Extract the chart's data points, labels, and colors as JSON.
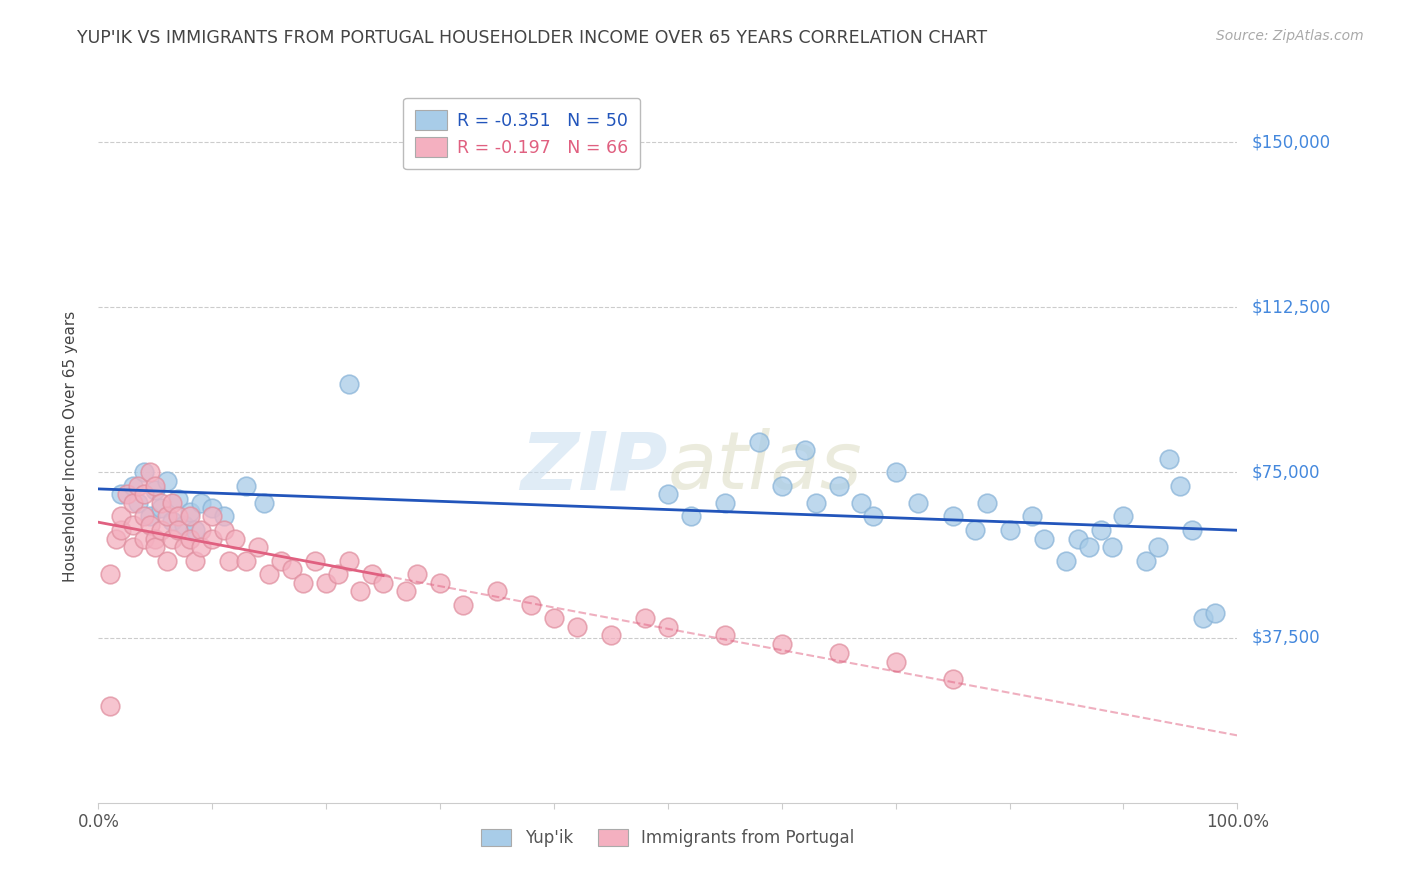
{
  "title": "YUP'IK VS IMMIGRANTS FROM PORTUGAL HOUSEHOLDER INCOME OVER 65 YEARS CORRELATION CHART",
  "source": "Source: ZipAtlas.com",
  "ylabel": "Householder Income Over 65 years",
  "ytick_labels": [
    "$37,500",
    "$75,000",
    "$112,500",
    "$150,000"
  ],
  "ytick_values": [
    37500,
    75000,
    112500,
    150000
  ],
  "ymin": 0,
  "ymax": 162000,
  "xmin": 0,
  "xmax": 1.0,
  "series1_label": "Yup'ik",
  "series1_R": -0.351,
  "series1_N": 50,
  "series1_color": "#a8cce8",
  "series1_edge_color": "#8ab4d8",
  "series1_line_color": "#2255bb",
  "series2_label": "Immigrants from Portugal",
  "series2_R": -0.197,
  "series2_N": 66,
  "series2_color": "#f4b0c0",
  "series2_edge_color": "#e090a0",
  "series2_line_color": "#e06080",
  "background_color": "#ffffff",
  "grid_color": "#cccccc",
  "title_color": "#444444",
  "source_color": "#aaaaaa",
  "ytick_color": "#4488dd",
  "watermark_color": "#c8ddf0",
  "series1_x": [
    0.02,
    0.03,
    0.035,
    0.04,
    0.045,
    0.05,
    0.055,
    0.06,
    0.065,
    0.07,
    0.075,
    0.08,
    0.085,
    0.09,
    0.1,
    0.11,
    0.13,
    0.145,
    0.22,
    0.5,
    0.52,
    0.55,
    0.58,
    0.6,
    0.62,
    0.63,
    0.65,
    0.67,
    0.68,
    0.7,
    0.72,
    0.75,
    0.77,
    0.78,
    0.8,
    0.82,
    0.83,
    0.85,
    0.86,
    0.87,
    0.88,
    0.89,
    0.9,
    0.92,
    0.93,
    0.94,
    0.95,
    0.96,
    0.97,
    0.98
  ],
  "series1_y": [
    70000,
    72000,
    68000,
    75000,
    65000,
    71000,
    67000,
    73000,
    64000,
    69000,
    63000,
    66000,
    62000,
    68000,
    67000,
    65000,
    72000,
    68000,
    95000,
    70000,
    65000,
    68000,
    82000,
    72000,
    80000,
    68000,
    72000,
    68000,
    65000,
    75000,
    68000,
    65000,
    62000,
    68000,
    62000,
    65000,
    60000,
    55000,
    60000,
    58000,
    62000,
    58000,
    65000,
    55000,
    58000,
    78000,
    72000,
    62000,
    42000,
    43000
  ],
  "series2_x": [
    0.01,
    0.01,
    0.015,
    0.02,
    0.02,
    0.025,
    0.03,
    0.03,
    0.03,
    0.035,
    0.04,
    0.04,
    0.04,
    0.045,
    0.045,
    0.05,
    0.05,
    0.05,
    0.055,
    0.055,
    0.06,
    0.06,
    0.065,
    0.065,
    0.07,
    0.07,
    0.075,
    0.08,
    0.08,
    0.085,
    0.09,
    0.09,
    0.1,
    0.1,
    0.11,
    0.115,
    0.12,
    0.13,
    0.14,
    0.15,
    0.16,
    0.17,
    0.18,
    0.19,
    0.2,
    0.21,
    0.22,
    0.23,
    0.24,
    0.25,
    0.27,
    0.28,
    0.3,
    0.32,
    0.35,
    0.38,
    0.4,
    0.42,
    0.45,
    0.48,
    0.5,
    0.55,
    0.6,
    0.65,
    0.7,
    0.75
  ],
  "series2_y": [
    22000,
    52000,
    60000,
    62000,
    65000,
    70000,
    68000,
    58000,
    63000,
    72000,
    70000,
    65000,
    60000,
    75000,
    63000,
    72000,
    60000,
    58000,
    68000,
    62000,
    65000,
    55000,
    68000,
    60000,
    65000,
    62000,
    58000,
    65000,
    60000,
    55000,
    62000,
    58000,
    65000,
    60000,
    62000,
    55000,
    60000,
    55000,
    58000,
    52000,
    55000,
    53000,
    50000,
    55000,
    50000,
    52000,
    55000,
    48000,
    52000,
    50000,
    48000,
    52000,
    50000,
    45000,
    48000,
    45000,
    42000,
    40000,
    38000,
    42000,
    40000,
    38000,
    36000,
    34000,
    32000,
    28000
  ]
}
